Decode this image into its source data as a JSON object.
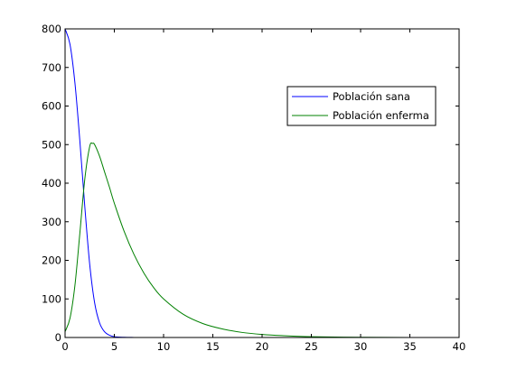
{
  "chart_data": {
    "type": "line",
    "title": "",
    "xlabel": "",
    "ylabel": "",
    "xlim": [
      0,
      40
    ],
    "ylim": [
      0,
      800
    ],
    "xticks": [
      0,
      5,
      10,
      15,
      20,
      25,
      30,
      35,
      40
    ],
    "yticks": [
      0,
      100,
      200,
      300,
      400,
      500,
      600,
      700,
      800
    ],
    "grid": false,
    "legend_position": "top-right",
    "series": [
      {
        "name": "Población sana",
        "color": "#0000ff",
        "x": [
          0,
          0.5,
          1,
          1.5,
          2,
          2.5,
          3,
          3.5,
          4,
          4.5,
          5,
          6,
          7,
          8,
          10,
          15,
          20,
          25,
          30,
          35,
          40
        ],
        "y": [
          800,
          760,
          660,
          510,
          340,
          190,
          90,
          38,
          15,
          6,
          2,
          0.5,
          0.1,
          0,
          0,
          0,
          0,
          0,
          0,
          0,
          0
        ]
      },
      {
        "name": "Población enferma",
        "color": "#008000",
        "x": [
          0,
          0.5,
          1,
          1.5,
          2,
          2.5,
          2.8,
          3,
          3.5,
          4,
          4.5,
          5,
          6,
          7,
          8,
          9,
          10,
          12,
          14,
          16,
          18,
          20,
          22,
          25,
          30,
          35,
          40
        ],
        "y": [
          15,
          50,
          135,
          270,
          410,
          495,
          503,
          500,
          470,
          430,
          390,
          348,
          275,
          215,
          167,
          129,
          100,
          60,
          36,
          22,
          13,
          8,
          5,
          2,
          0.5,
          0.1,
          0
        ]
      }
    ]
  }
}
